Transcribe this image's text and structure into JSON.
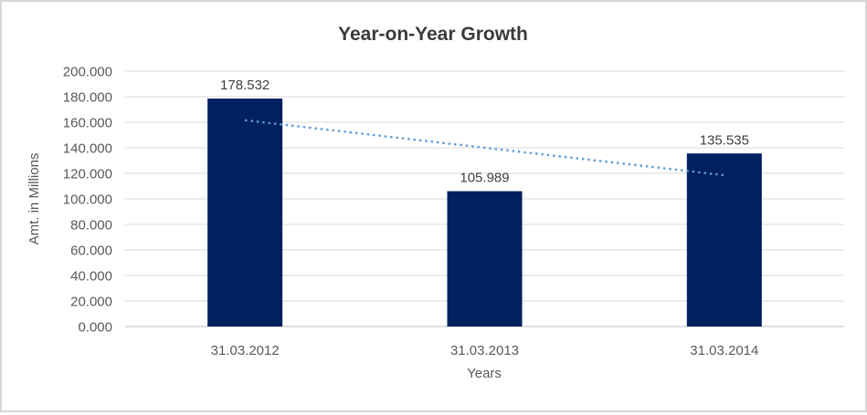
{
  "window": {
    "background_color": "#ffffff",
    "border_color": "#d6d6d6"
  },
  "chart_data": {
    "type": "bar",
    "title": "Year-on-Year Growth",
    "xlabel": "Years",
    "ylabel": "Amt. in Millions",
    "categories": [
      "31.03.2012",
      "31.03.2013",
      "31.03.2014"
    ],
    "values": [
      178.532,
      105.989,
      135.535
    ],
    "data_labels": [
      "178.532",
      "105.989",
      "135.535"
    ],
    "ylim": [
      0,
      200
    ],
    "ytick_step": 20,
    "ytick_labels": [
      "200.000",
      "180.000",
      "160.000",
      "140.000",
      "120.000",
      "100.000",
      "80.000",
      "60.000",
      "40.000",
      "20.000",
      "0.000"
    ],
    "grid": true,
    "legend": "none",
    "trendline": {
      "type": "linear",
      "style": "dotted",
      "color": "#5b9bd5",
      "start_value": 161.52,
      "end_value": 118.52
    },
    "colors": {
      "bar": "#002060",
      "gridline": "#d9d9d9",
      "axis_line": "#bfbfbf",
      "tick_label": "#595959",
      "data_label": "#404040",
      "title": "#3a3a3a",
      "trendline": "#5b9bd5"
    }
  }
}
